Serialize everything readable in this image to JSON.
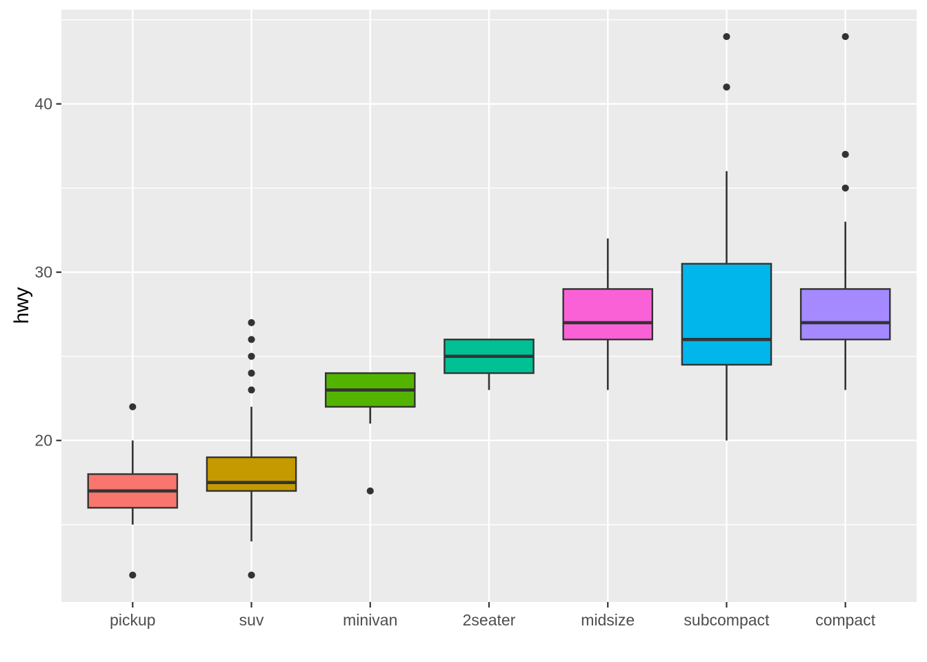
{
  "chart_data": {
    "type": "boxplot",
    "title": "",
    "xlabel": "",
    "ylabel": "hwy",
    "categories": [
      "pickup",
      "suv",
      "minivan",
      "2seater",
      "midsize",
      "subcompact",
      "compact"
    ],
    "y_ticks": [
      20,
      30,
      40
    ],
    "y_minor_ticks": [
      15,
      25,
      35,
      45
    ],
    "ylim": [
      10.4,
      45.6
    ],
    "grid": true,
    "legend": "none",
    "colors": {
      "panel_bg": "#EBEBEB",
      "grid": "#FFFFFF",
      "box_line": "#333333",
      "tick": "#333333",
      "axis_text": "#4D4D4D",
      "axis_title": "#000000"
    },
    "series": [
      {
        "category": "pickup",
        "fill": "#F8766D",
        "whisker_low": 15,
        "q1": 16,
        "median": 17,
        "q3": 18,
        "whisker_high": 20,
        "outliers": [
          12,
          22
        ]
      },
      {
        "category": "suv",
        "fill": "#C49A00",
        "whisker_low": 14,
        "q1": 17,
        "median": 17.5,
        "q3": 19,
        "whisker_high": 22,
        "outliers": [
          12,
          23,
          24,
          25,
          26,
          27
        ]
      },
      {
        "category": "minivan",
        "fill": "#53B400",
        "whisker_low": 21,
        "q1": 22,
        "median": 23,
        "q3": 24,
        "whisker_high": 24,
        "outliers": [
          17
        ]
      },
      {
        "category": "2seater",
        "fill": "#00C094",
        "whisker_low": 23,
        "q1": 24,
        "median": 25,
        "q3": 26,
        "whisker_high": 26,
        "outliers": []
      },
      {
        "category": "midsize",
        "fill": "#FB61D7",
        "whisker_low": 23,
        "q1": 26,
        "median": 27,
        "q3": 29,
        "whisker_high": 32,
        "outliers": []
      },
      {
        "category": "subcompact",
        "fill": "#00B6EB",
        "whisker_low": 20,
        "q1": 24.5,
        "median": 26,
        "q3": 30.5,
        "whisker_high": 36,
        "outliers": [
          41,
          44
        ]
      },
      {
        "category": "compact",
        "fill": "#A58AFF",
        "whisker_low": 23,
        "q1": 26,
        "median": 27,
        "q3": 29,
        "whisker_high": 33,
        "outliers": [
          35,
          37,
          44
        ]
      }
    ]
  }
}
